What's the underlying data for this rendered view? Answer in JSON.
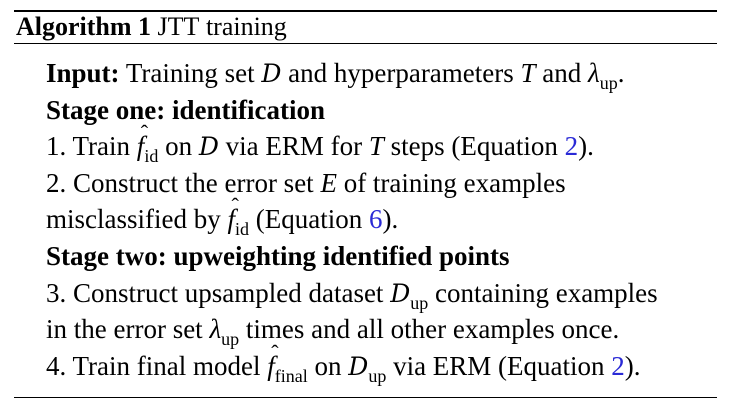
{
  "algorithm": {
    "label": "Algorithm 1",
    "title_caps": "JTT",
    "title_rest": "training"
  },
  "input": {
    "label": "Input:",
    "text_a": "Training set",
    "dataset_sym": "D",
    "text_b": "and hyperparameters",
    "T_sym": "T",
    "text_c": "and",
    "lambda_sym": "λ",
    "lambda_sub": "up",
    "text_d": "."
  },
  "stage_one": {
    "heading": "Stage one: identification",
    "step1": {
      "num": "1. Train",
      "f_sym": "f",
      "f_sub": "id",
      "text_a": "on",
      "dataset_sym": "D",
      "text_b": "via ERM for",
      "T_sym": "T",
      "text_c": "steps (Equation",
      "ref": "2",
      "text_d": ")."
    },
    "step2": {
      "line1_a": "2. Construct the error set",
      "E_sym": "E",
      "line1_b": "of training examples",
      "line2_a": "misclassified by",
      "f_sym": "f",
      "f_sub": "id",
      "line2_b": "(Equation",
      "ref": "6",
      "line2_c": ")."
    }
  },
  "stage_two": {
    "heading": "Stage two: upweighting identified points",
    "step3": {
      "line1_a": "3. Construct upsampled dataset",
      "dataset_sym": "D",
      "dataset_sub": "up",
      "line1_b": "containing examples",
      "line2_a": "in the error set",
      "lambda_sym": "λ",
      "lambda_sub": "up",
      "line2_b": "times and all other examples once."
    },
    "step4": {
      "text_a": "4. Train final model",
      "f_sym": "f",
      "f_sub": "final",
      "text_b": "on",
      "dataset_sym": "D",
      "dataset_sub": "up",
      "text_c": "via ERM (Equation",
      "ref": "2",
      "text_d": ")."
    }
  },
  "colors": {
    "reference_link": "#2a2ad6"
  }
}
